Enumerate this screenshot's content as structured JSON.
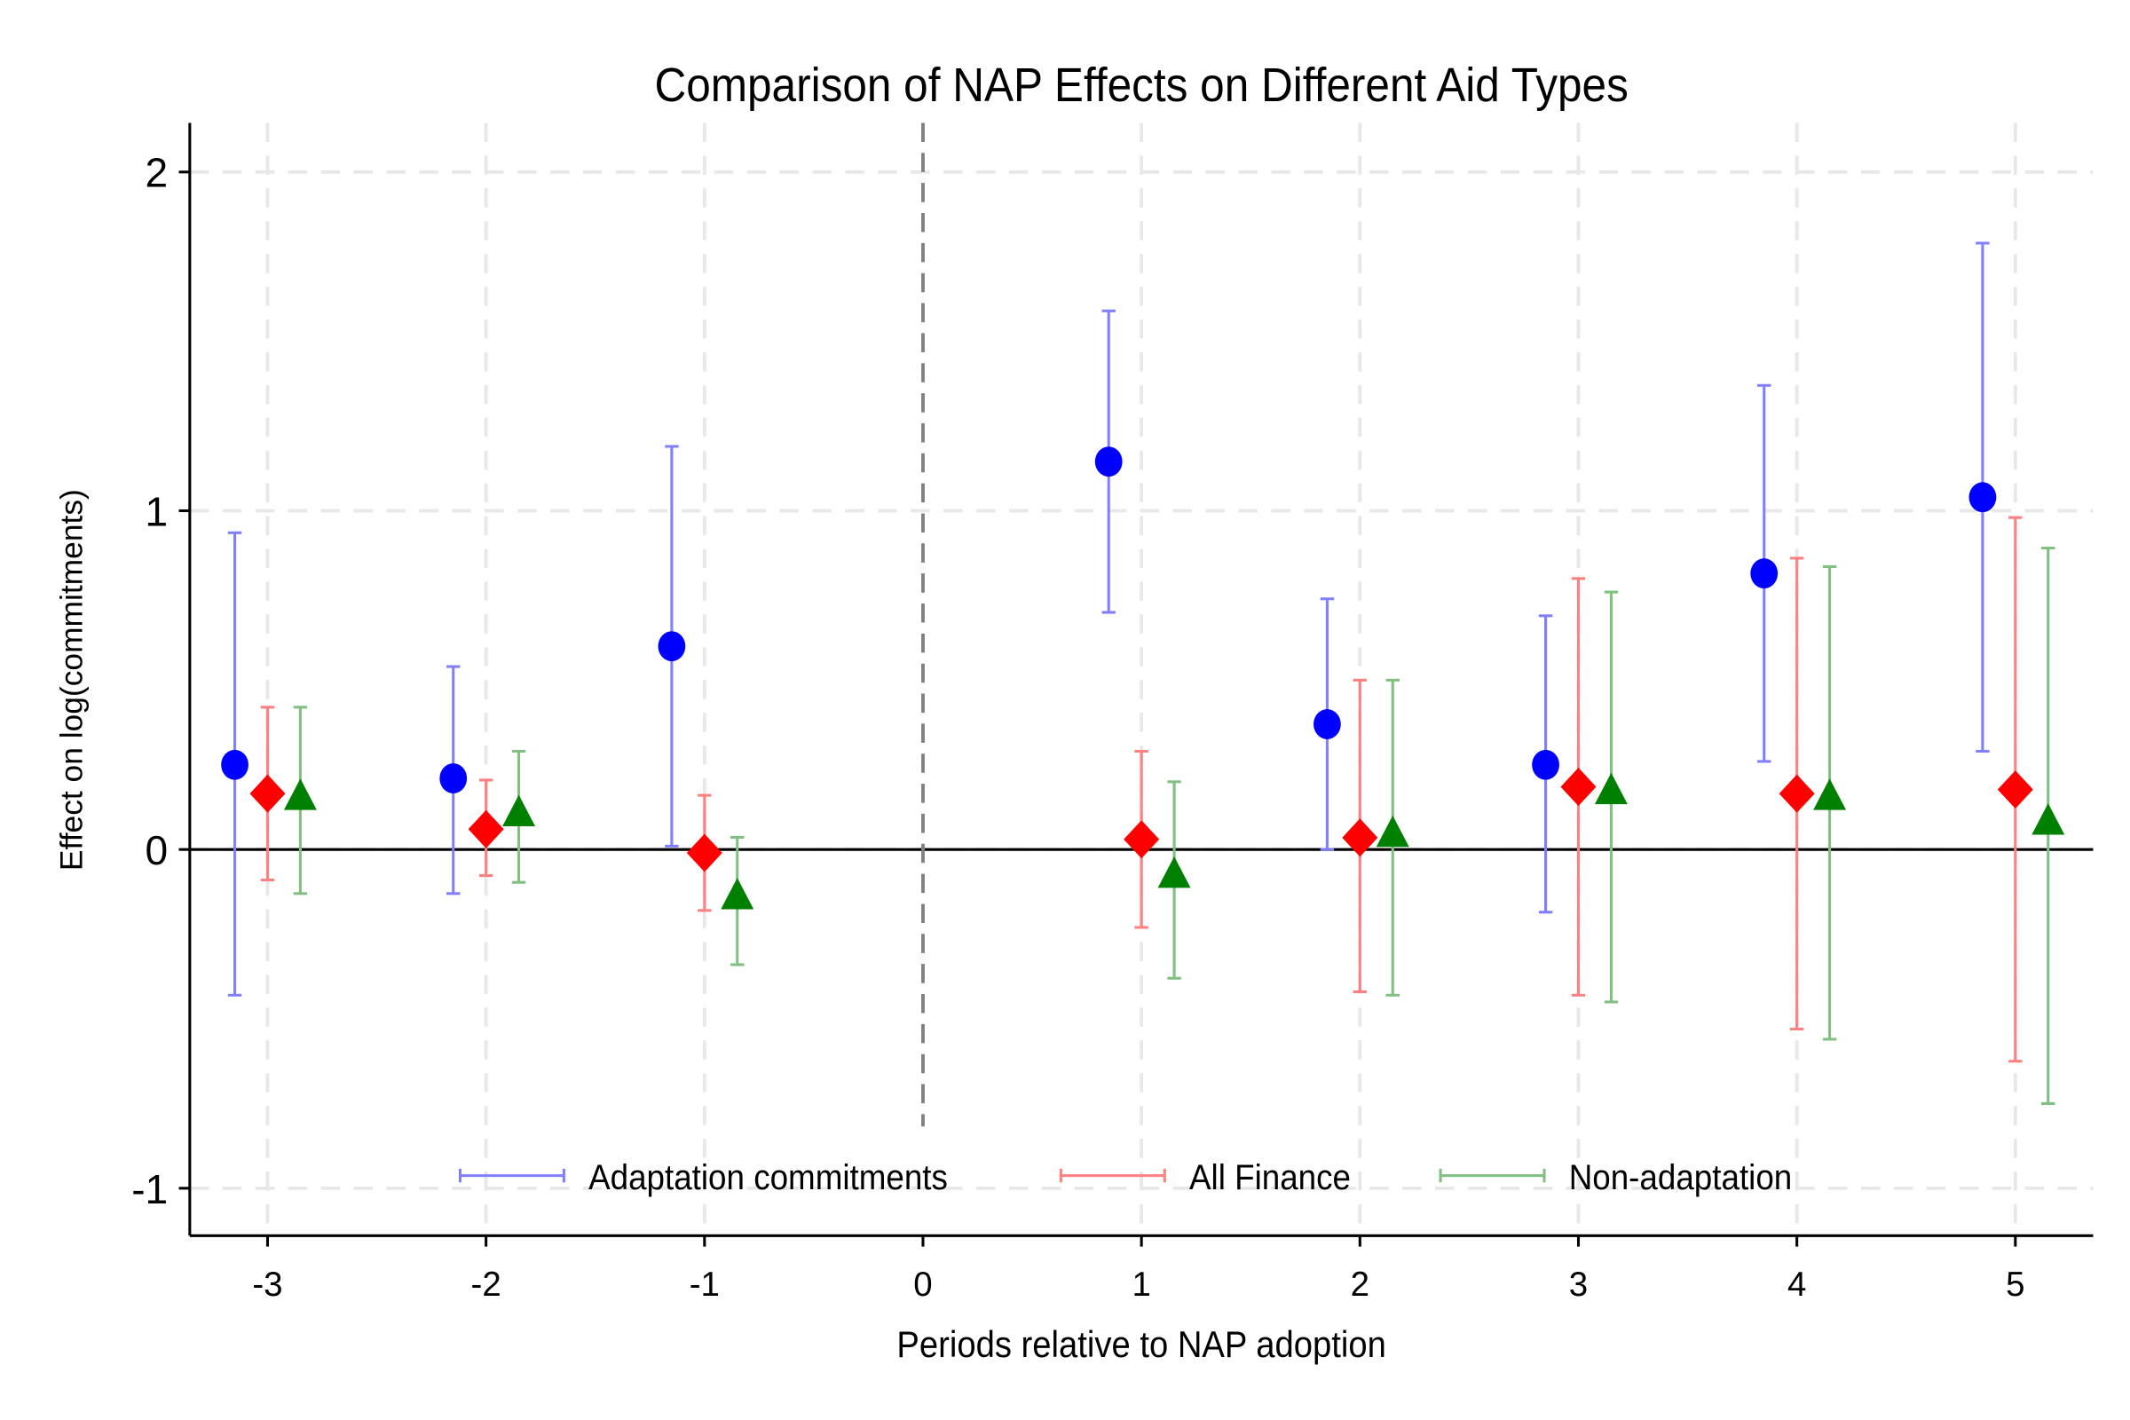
{
  "chart_data": {
    "type": "scatter",
    "title": "Comparison of NAP Effects on Different Aid Types",
    "xlabel": "Periods relative to NAP adoption",
    "ylabel": "Effect on log(commitments)",
    "xlim": [
      -3.356,
      5.356
    ],
    "ylim": [
      -1.14,
      2.145
    ],
    "xticks": [
      -3,
      -2,
      -1,
      0,
      1,
      2,
      3,
      4,
      5
    ],
    "yticks": [
      -1,
      0,
      1,
      2
    ],
    "grid": true,
    "reference_lines": {
      "vertical_x": 0,
      "horizontal_y": 0
    },
    "legend_position": "bottom-inside",
    "series": [
      {
        "name": "Adaptation commitments",
        "color": "#0000ff",
        "ci_color": "#8080ff",
        "marker": "circle",
        "x_offset": -0.15,
        "x": [
          -3,
          -2,
          -1,
          1,
          2,
          3,
          4,
          5
        ],
        "y": [
          0.25,
          0.21,
          0.6,
          1.145,
          0.37,
          0.25,
          0.815,
          1.04
        ],
        "ci_low": [
          -0.43,
          -0.13,
          0.01,
          0.7,
          0.0,
          -0.185,
          0.26,
          0.29
        ],
        "ci_high": [
          0.935,
          0.54,
          1.19,
          1.59,
          0.74,
          0.69,
          1.37,
          1.79
        ]
      },
      {
        "name": "All Finance",
        "color": "#ff0000",
        "ci_color": "#ff8080",
        "marker": "diamond",
        "x_offset": 0,
        "x": [
          -3,
          -2,
          -1,
          1,
          2,
          3,
          4,
          5
        ],
        "y": [
          0.165,
          0.06,
          -0.01,
          0.03,
          0.035,
          0.185,
          0.165,
          0.177
        ],
        "ci_low": [
          -0.09,
          -0.077,
          -0.18,
          -0.23,
          -0.42,
          -0.43,
          -0.53,
          -0.625
        ],
        "ci_high": [
          0.42,
          0.205,
          0.16,
          0.29,
          0.5,
          0.8,
          0.86,
          0.98
        ]
      },
      {
        "name": "Non-adaptation",
        "color": "#008000",
        "ci_color": "#80c080",
        "marker": "triangle",
        "x_offset": 0.15,
        "x": [
          -3,
          -2,
          -1,
          1,
          2,
          3,
          4,
          5
        ],
        "y": [
          0.153,
          0.105,
          -0.14,
          -0.077,
          0.044,
          0.17,
          0.153,
          0.08
        ],
        "ci_low": [
          -0.13,
          -0.097,
          -0.34,
          -0.38,
          -0.43,
          -0.45,
          -0.56,
          -0.75
        ],
        "ci_high": [
          0.42,
          0.29,
          0.036,
          0.2,
          0.5,
          0.76,
          0.835,
          0.89
        ]
      }
    ]
  }
}
